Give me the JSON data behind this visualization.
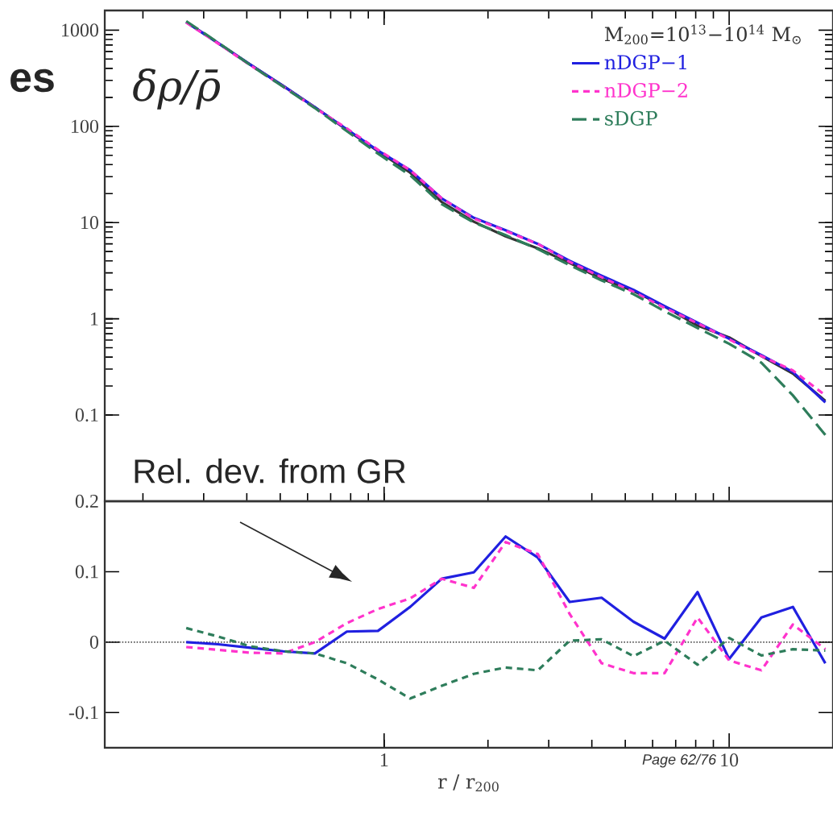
{
  "chart_data": [
    {
      "type": "line",
      "title": "es",
      "ylabel": "δρ/ρ̄",
      "legend_title": "M$_{200}$=10$^{13}$−10$^{14}$ M$_{⊙}$",
      "annotations": [
        "Rel. dev. from GR"
      ],
      "x": [
        0.267,
        0.33,
        0.41,
        0.51,
        0.63,
        0.78,
        0.96,
        1.19,
        1.47,
        1.82,
        2.25,
        2.79,
        3.45,
        4.27,
        5.28,
        6.5,
        8.1,
        10.0,
        12.4,
        15.3,
        19.0
      ],
      "xlim": [
        0.155,
        20
      ],
      "ylim": [
        0.0127,
        1600
      ],
      "yticks": [
        0.1,
        1,
        10,
        100,
        1000
      ],
      "log": "xy",
      "tick_labels": "y",
      "legend": "top right",
      "series": [
        {
          "color": "#333333",
          "line_style": "solid",
          "values": [
            1213,
            735,
            437,
            263,
            158,
            92,
            55,
            33,
            16.3,
            10.2,
            7.2,
            5.4,
            3.8,
            2.6,
            1.95,
            1.34,
            0.85,
            0.64,
            0.41,
            0.27,
            0.14
          ]
        },
        {
          "name": "nDGP−1",
          "color": "#2020e0",
          "line_style": "solid",
          "values": [
            1213,
            735,
            437,
            263,
            158,
            93,
            56,
            35,
            17.8,
            11.2,
            8.3,
            6.0,
            4.0,
            2.8,
            2.0,
            1.35,
            0.91,
            0.62,
            0.42,
            0.28,
            0.135
          ]
        },
        {
          "name": "nDGP−2",
          "color": "#ff33cc",
          "line_style": "dashed",
          "values": [
            1200,
            728,
            430,
            259,
            156,
            95,
            57,
            35,
            17.8,
            11.0,
            8.2,
            6.0,
            3.9,
            2.7,
            1.9,
            1.3,
            0.9,
            0.61,
            0.41,
            0.29,
            0.16
          ]
        },
        {
          "name": "sDGP",
          "color": "#2e7d5b",
          "line_style": "dashed",
          "values": [
            1240,
            745,
            432,
            258,
            155,
            89,
            52,
            31,
            15.5,
            10.0,
            7.4,
            5.3,
            3.6,
            2.5,
            1.8,
            1.2,
            0.8,
            0.55,
            0.35,
            0.16,
            0.062
          ]
        }
      ]
    },
    {
      "type": "line",
      "xlabel": "r / r$_{200}$",
      "annotations": [
        "Page 62/76"
      ],
      "x": [
        0.267,
        0.33,
        0.41,
        0.51,
        0.63,
        0.78,
        0.96,
        1.19,
        1.47,
        1.82,
        2.25,
        2.79,
        3.45,
        4.27,
        5.28,
        6.5,
        8.1,
        10.0,
        12.4,
        15.3,
        19.0
      ],
      "xlim": [
        0.155,
        20
      ],
      "ylim": [
        -0.15,
        0.2
      ],
      "xticks": [
        1,
        10
      ],
      "yticks": [
        -0.1,
        0,
        0.1,
        0.2
      ],
      "log": "x",
      "ref_lines": [
        {
          "axis": "y",
          "value": 0,
          "color": "#555555",
          "line_style": "dotted"
        }
      ],
      "series": [
        {
          "color": "#2020e0",
          "line_style": "solid",
          "values": [
            0,
            -0.003,
            -0.008,
            -0.013,
            -0.016,
            0.015,
            0.016,
            0.05,
            0.09,
            0.099,
            0.15,
            0.12,
            0.057,
            0.063,
            0.029,
            0.005,
            0.071,
            -0.024,
            0.035,
            0.05,
            -0.03
          ]
        },
        {
          "color": "#ff33cc",
          "line_style": "dashed",
          "values": [
            -0.007,
            -0.011,
            -0.015,
            -0.016,
            0.0,
            0.027,
            0.047,
            0.062,
            0.09,
            0.077,
            0.142,
            0.125,
            0.04,
            -0.03,
            -0.044,
            -0.044,
            0.035,
            -0.026,
            -0.04,
            0.025,
            -0.01
          ]
        },
        {
          "color": "#2e7d5b",
          "line_style": "dashed",
          "values": [
            0.02,
            0.008,
            -0.006,
            -0.013,
            -0.016,
            -0.03,
            -0.053,
            -0.08,
            -0.062,
            -0.045,
            -0.036,
            -0.04,
            0.002,
            0.004,
            -0.02,
            0.002,
            -0.032,
            0.006,
            -0.019,
            -0.01,
            -0.012
          ]
        }
      ]
    }
  ]
}
